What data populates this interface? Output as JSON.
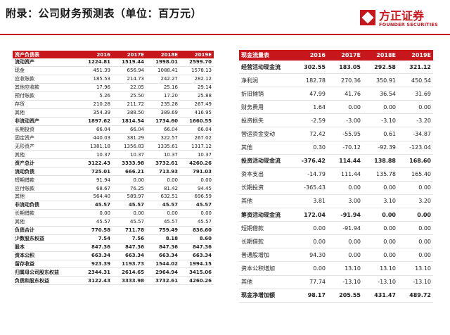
{
  "title": "附录：公司财务预测表（单位：百万元）",
  "brand": {
    "name_cn": "方正证券",
    "name_en": "FOUNDER SECURITIES",
    "color": "#c8161d"
  },
  "balance_sheet": {
    "headers": [
      "资产负债表",
      "2016",
      "2017E",
      "2018E",
      "2019E"
    ],
    "rows": [
      {
        "label": "流动资产",
        "values": [
          "1224.81",
          "1519.44",
          "1998.01",
          "2599.70"
        ],
        "bold": true
      },
      {
        "label": "现金",
        "values": [
          "451.39",
          "656.94",
          "1088.41",
          "1578.13"
        ],
        "bold": false
      },
      {
        "label": "应收账款",
        "values": [
          "185.53",
          "214.73",
          "242.27",
          "282.12"
        ],
        "bold": false
      },
      {
        "label": "其他应收款",
        "values": [
          "17.96",
          "22.05",
          "25.16",
          "29.14"
        ],
        "bold": false
      },
      {
        "label": "预付账款",
        "values": [
          "5.26",
          "25.50",
          "17.20",
          "25.88"
        ],
        "bold": false
      },
      {
        "label": "存货",
        "values": [
          "210.28",
          "211.72",
          "235.28",
          "267.49"
        ],
        "bold": false
      },
      {
        "label": "其他",
        "values": [
          "354.39",
          "388.50",
          "389.69",
          "416.95"
        ],
        "bold": false
      },
      {
        "label": "非流动资产",
        "values": [
          "1897.62",
          "1814.54",
          "1734.60",
          "1660.55"
        ],
        "bold": true
      },
      {
        "label": "长期投资",
        "values": [
          "66.04",
          "66.04",
          "66.04",
          "66.04"
        ],
        "bold": false
      },
      {
        "label": "固定资产",
        "values": [
          "440.03",
          "381.29",
          "322.57",
          "267.02"
        ],
        "bold": false
      },
      {
        "label": "无形资产",
        "values": [
          "1381.18",
          "1356.83",
          "1335.61",
          "1317.12"
        ],
        "bold": false
      },
      {
        "label": "其他",
        "values": [
          "10.37",
          "10.37",
          "10.37",
          "10.37"
        ],
        "bold": false
      },
      {
        "label": "资产总计",
        "values": [
          "3122.43",
          "3333.98",
          "3732.61",
          "4260.26"
        ],
        "bold": true
      },
      {
        "label": "流动负债",
        "values": [
          "725.01",
          "666.21",
          "713.93",
          "791.03"
        ],
        "bold": true
      },
      {
        "label": "短期借款",
        "values": [
          "91.94",
          "0.00",
          "0.00",
          "0.00"
        ],
        "bold": false
      },
      {
        "label": "应付账款",
        "values": [
          "68.67",
          "76.25",
          "81.42",
          "94.45"
        ],
        "bold": false
      },
      {
        "label": "其他",
        "values": [
          "564.40",
          "589.97",
          "632.51",
          "696.59"
        ],
        "bold": false
      },
      {
        "label": "非流动负债",
        "values": [
          "45.57",
          "45.57",
          "45.57",
          "45.57"
        ],
        "bold": true
      },
      {
        "label": "长期借款",
        "values": [
          "0.00",
          "0.00",
          "0.00",
          "0.00"
        ],
        "bold": false
      },
      {
        "label": "其他",
        "values": [
          "45.57",
          "45.57",
          "45.57",
          "45.57"
        ],
        "bold": false
      },
      {
        "label": "负债合计",
        "values": [
          "770.58",
          "711.78",
          "759.49",
          "836.60"
        ],
        "bold": true
      },
      {
        "label": "少数股东权益",
        "values": [
          "7.54",
          "7.56",
          "8.18",
          "8.60"
        ],
        "bold": true
      },
      {
        "label": "股本",
        "values": [
          "847.36",
          "847.36",
          "847.36",
          "847.36"
        ],
        "bold": true
      },
      {
        "label": "资本公积",
        "values": [
          "663.34",
          "663.34",
          "663.34",
          "663.34"
        ],
        "bold": true
      },
      {
        "label": "留存收益",
        "values": [
          "923.39",
          "1193.73",
          "1544.02",
          "1994.15"
        ],
        "bold": true
      },
      {
        "label": "归属母公司股东权益",
        "values": [
          "2344.31",
          "2614.65",
          "2964.94",
          "3415.06"
        ],
        "bold": true
      },
      {
        "label": "负债和股东权益",
        "values": [
          "3122.43",
          "3333.98",
          "3732.61",
          "4260.26"
        ],
        "bold": true
      }
    ]
  },
  "cash_flow": {
    "headers": [
      "现金流量表",
      "2016",
      "2017E",
      "2018E",
      "2019E"
    ],
    "rows": [
      {
        "label": "经营活动现金流",
        "values": [
          "302.55",
          "183.05",
          "292.58",
          "321.12"
        ],
        "bold": true
      },
      {
        "label": "净利润",
        "values": [
          "182.78",
          "270.36",
          "350.91",
          "450.54"
        ],
        "bold": false
      },
      {
        "label": "折旧摊销",
        "values": [
          "47.99",
          "41.76",
          "36.54",
          "31.69"
        ],
        "bold": false
      },
      {
        "label": "财务费用",
        "values": [
          "1.64",
          "0.00",
          "0.00",
          "0.00"
        ],
        "bold": false
      },
      {
        "label": "投资损失",
        "values": [
          "-2.59",
          "-3.00",
          "-3.10",
          "-3.20"
        ],
        "bold": false
      },
      {
        "label": "营运资金变动",
        "values": [
          "72.42",
          "-55.95",
          "0.61",
          "-34.87"
        ],
        "bold": false
      },
      {
        "label": "其他",
        "values": [
          "0.30",
          "-70.12",
          "-92.39",
          "-123.04"
        ],
        "bold": false
      },
      {
        "label": "投资活动现金流",
        "values": [
          "-376.42",
          "114.44",
          "138.88",
          "168.60"
        ],
        "bold": true
      },
      {
        "label": "资本支出",
        "values": [
          "-14.79",
          "111.44",
          "135.78",
          "165.40"
        ],
        "bold": false
      },
      {
        "label": "长期投资",
        "values": [
          "-365.43",
          "0.00",
          "0.00",
          "0.00"
        ],
        "bold": false
      },
      {
        "label": "其他",
        "values": [
          "3.81",
          "3.00",
          "3.10",
          "3.20"
        ],
        "bold": false
      },
      {
        "label": "筹资活动现金流",
        "values": [
          "172.04",
          "-91.94",
          "0.00",
          "0.00"
        ],
        "bold": true
      },
      {
        "label": "短期借款",
        "values": [
          "0.00",
          "-91.94",
          "0.00",
          "0.00"
        ],
        "bold": false
      },
      {
        "label": "长期借款",
        "values": [
          "0.00",
          "0.00",
          "0.00",
          "0.00"
        ],
        "bold": false
      },
      {
        "label": "普通股增加",
        "values": [
          "94.30",
          "0.00",
          "0.00",
          "0.00"
        ],
        "bold": false
      },
      {
        "label": "资本公积增加",
        "values": [
          "0.00",
          "13.10",
          "13.10",
          "13.10"
        ],
        "bold": false
      },
      {
        "label": "其他",
        "values": [
          "77.74",
          "-13.10",
          "-13.10",
          "-13.10"
        ],
        "bold": false
      },
      {
        "label": "现金净增加额",
        "values": [
          "98.17",
          "205.55",
          "431.47",
          "489.72"
        ],
        "bold": true
      }
    ]
  }
}
